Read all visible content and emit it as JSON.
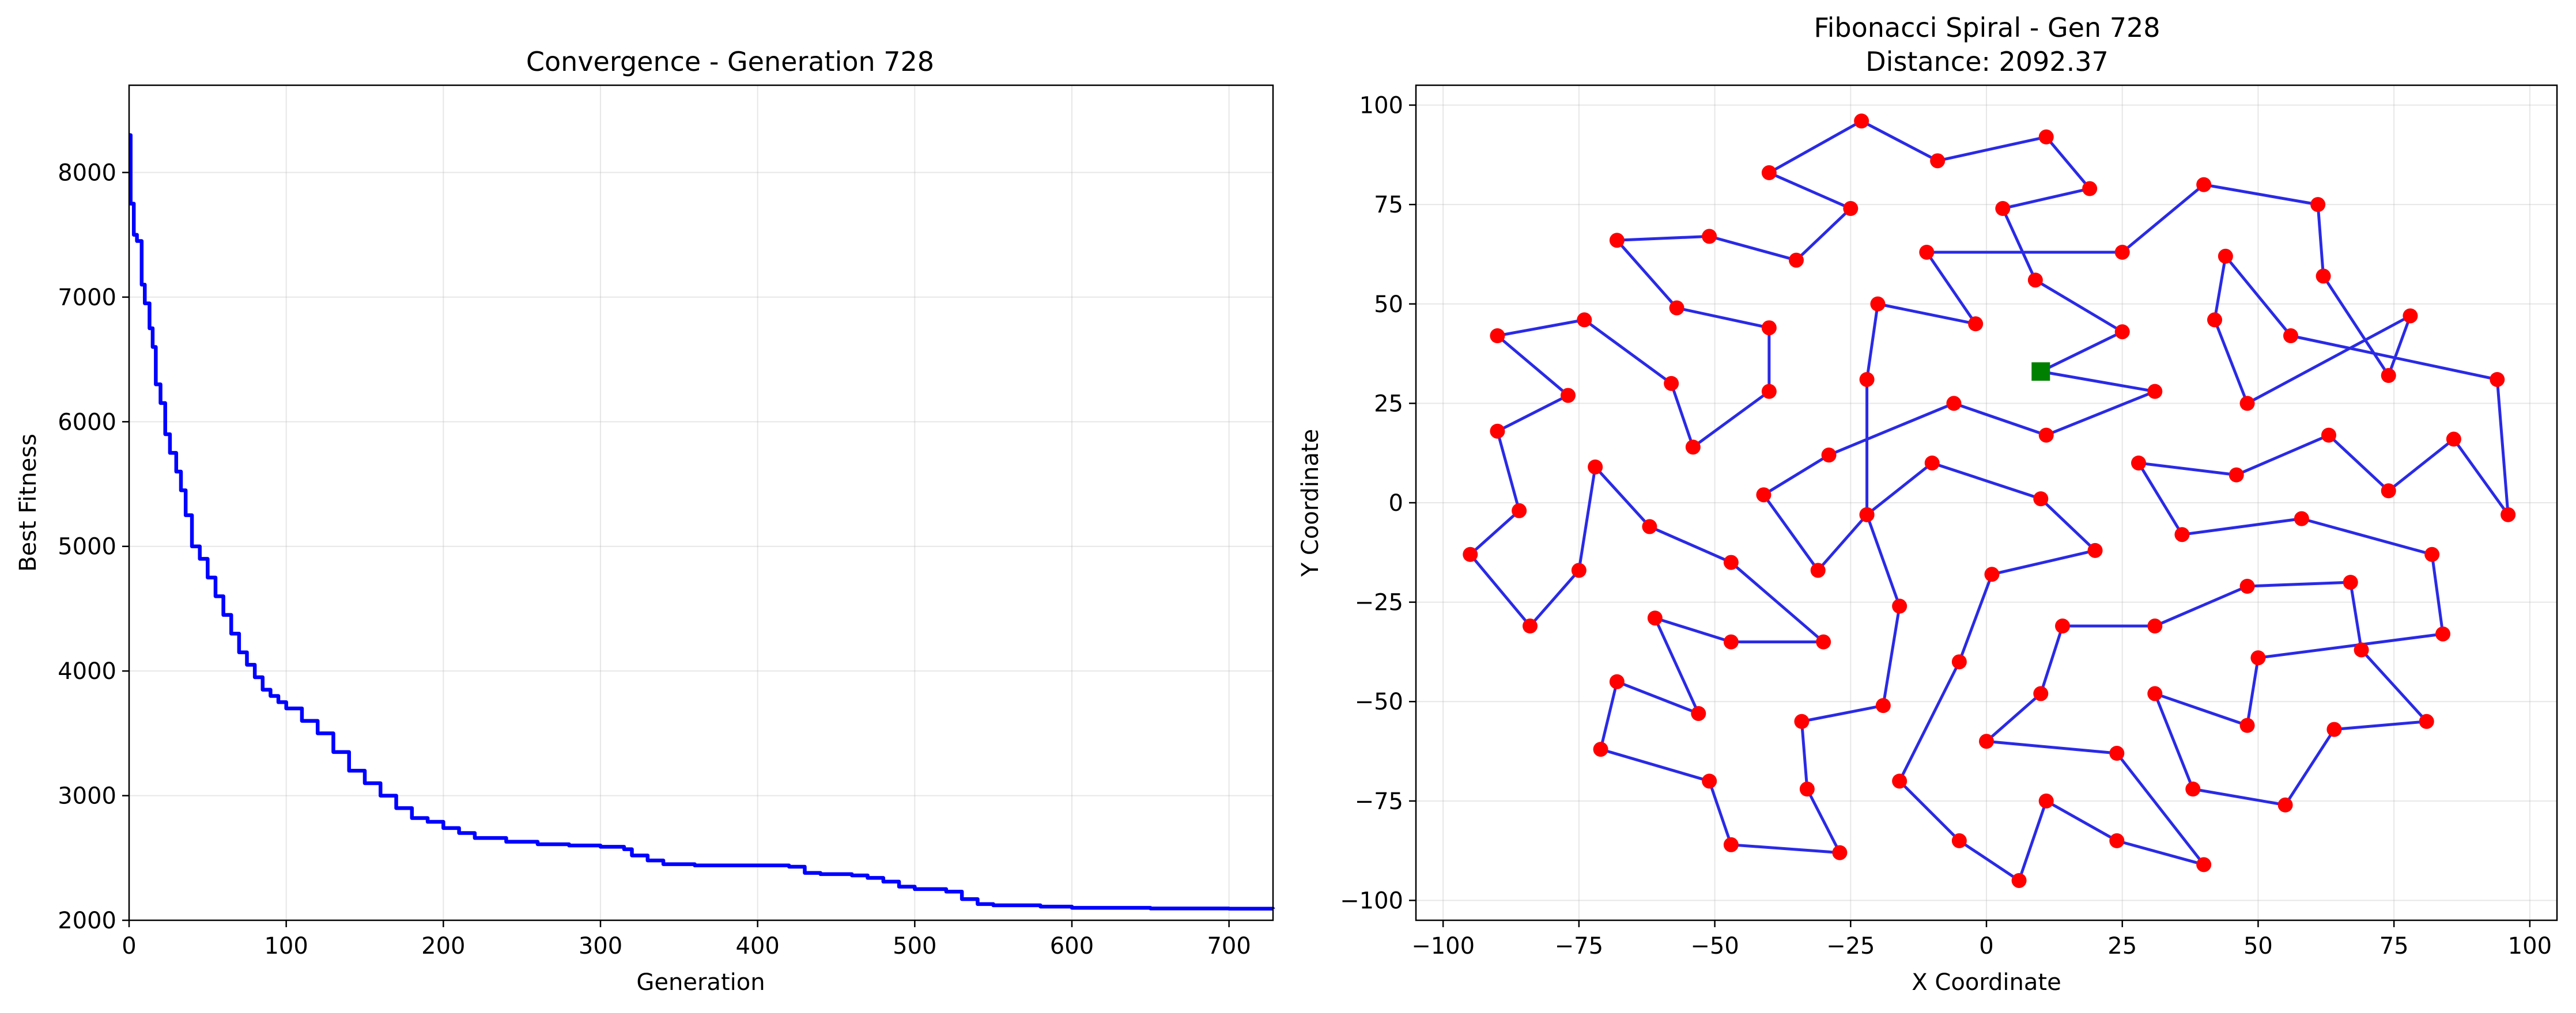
{
  "chart_data": [
    {
      "type": "line",
      "title": "Convergence - Generation 728",
      "xlabel": "Generation",
      "ylabel": "Best Fitness",
      "xlim": [
        0,
        728
      ],
      "ylim": [
        2000,
        8700
      ],
      "xticks": [
        0,
        100,
        200,
        300,
        400,
        500,
        600,
        700
      ],
      "yticks": [
        2000,
        3000,
        4000,
        5000,
        6000,
        7000,
        8000
      ],
      "grid": true,
      "line_color": "#0000ff",
      "series": [
        {
          "x": [
            0,
            1,
            3,
            5,
            8,
            10,
            13,
            15,
            17,
            20,
            23,
            26,
            30,
            33,
            36,
            40,
            45,
            50,
            55,
            60,
            65,
            70,
            75,
            80,
            85,
            90,
            95,
            100,
            110,
            120,
            130,
            140,
            150,
            160,
            170,
            180,
            190,
            200,
            210,
            220,
            240,
            260,
            280,
            300,
            315,
            320,
            330,
            340,
            360,
            380,
            400,
            420,
            430,
            440,
            460,
            470,
            480,
            490,
            500,
            520,
            530,
            540,
            550,
            580,
            600,
            630,
            650,
            700,
            728
          ],
          "y": [
            8300,
            7750,
            7500,
            7450,
            7100,
            6950,
            6750,
            6600,
            6300,
            6150,
            5900,
            5750,
            5600,
            5450,
            5250,
            5000,
            4900,
            4750,
            4600,
            4450,
            4300,
            4150,
            4050,
            3950,
            3850,
            3800,
            3750,
            3700,
            3600,
            3500,
            3350,
            3200,
            3100,
            3000,
            2900,
            2820,
            2790,
            2740,
            2700,
            2660,
            2630,
            2610,
            2600,
            2590,
            2570,
            2520,
            2480,
            2450,
            2440,
            2440,
            2440,
            2430,
            2380,
            2370,
            2360,
            2340,
            2310,
            2270,
            2250,
            2230,
            2170,
            2130,
            2120,
            2110,
            2100,
            2100,
            2095,
            2093,
            2092
          ]
        }
      ]
    },
    {
      "type": "scatter",
      "title": "Fibonacci Spiral - Gen 728",
      "subtitle": "Distance: 2092.37",
      "xlabel": "X Coordinate",
      "ylabel": "Y Coordinate",
      "xlim": [
        -105,
        105
      ],
      "ylim": [
        -105,
        105
      ],
      "xticks": [
        -100,
        -75,
        -50,
        -25,
        0,
        25,
        50,
        75,
        100
      ],
      "yticks": [
        -100,
        -75,
        -50,
        -25,
        0,
        25,
        50,
        75,
        100
      ],
      "grid": true,
      "route_color": "#2a2ae6",
      "city_color": "#ff0000",
      "start_color": "#008000",
      "start": [
        10,
        33
      ],
      "route": [
        [
          10,
          33
        ],
        [
          31,
          28
        ],
        [
          11,
          17
        ],
        [
          -6,
          25
        ],
        [
          -29,
          12
        ],
        [
          -41,
          2
        ],
        [
          -31,
          -17
        ],
        [
          -22,
          -3
        ],
        [
          -10,
          10
        ],
        [
          10,
          1
        ],
        [
          20,
          -12
        ],
        [
          1,
          -18
        ],
        [
          -5,
          -40
        ],
        [
          -16,
          -70
        ],
        [
          -5,
          -85
        ],
        [
          6,
          -95
        ],
        [
          11,
          -75
        ],
        [
          24,
          -85
        ],
        [
          40,
          -91
        ],
        [
          24,
          -63
        ],
        [
          0,
          -60
        ],
        [
          10,
          -48
        ],
        [
          14,
          -31
        ],
        [
          31,
          -31
        ],
        [
          48,
          -21
        ],
        [
          67,
          -20
        ],
        [
          69,
          -37
        ],
        [
          81,
          -55
        ],
        [
          64,
          -57
        ],
        [
          55,
          -76
        ],
        [
          38,
          -72
        ],
        [
          31,
          -48
        ],
        [
          48,
          -56
        ],
        [
          50,
          -39
        ],
        [
          84,
          -33
        ],
        [
          82,
          -13
        ],
        [
          58,
          -4
        ],
        [
          36,
          -8
        ],
        [
          28,
          10
        ],
        [
          46,
          7
        ],
        [
          63,
          17
        ],
        [
          74,
          3
        ],
        [
          86,
          16
        ],
        [
          96,
          -3
        ],
        [
          94,
          31
        ],
        [
          56,
          42
        ],
        [
          44,
          62
        ],
        [
          42,
          46
        ],
        [
          48,
          25
        ],
        [
          78,
          47
        ],
        [
          74,
          32
        ],
        [
          62,
          57
        ],
        [
          61,
          75
        ],
        [
          40,
          80
        ],
        [
          25,
          63
        ],
        [
          -11,
          63
        ],
        [
          -2,
          45
        ],
        [
          -20,
          50
        ],
        [
          -22,
          31
        ],
        [
          -22,
          -3
        ],
        [
          -16,
          -26
        ],
        [
          -19,
          -51
        ],
        [
          -34,
          -55
        ],
        [
          -33,
          -72
        ],
        [
          -27,
          -88
        ],
        [
          -47,
          -86
        ],
        [
          -51,
          -70
        ],
        [
          -71,
          -62
        ],
        [
          -68,
          -45
        ],
        [
          -53,
          -53
        ],
        [
          -61,
          -29
        ],
        [
          -47,
          -35
        ],
        [
          -30,
          -35
        ],
        [
          -47,
          -15
        ],
        [
          -62,
          -6
        ],
        [
          -72,
          9
        ],
        [
          -75,
          -17
        ],
        [
          -84,
          -31
        ],
        [
          -95,
          -13
        ],
        [
          -86,
          -2
        ],
        [
          -90,
          18
        ],
        [
          -77,
          27
        ],
        [
          -90,
          42
        ],
        [
          -74,
          46
        ],
        [
          -58,
          30
        ],
        [
          -54,
          14
        ],
        [
          -40,
          28
        ],
        [
          -40,
          44
        ],
        [
          -57,
          49
        ],
        [
          -68,
          66
        ],
        [
          -51,
          67
        ],
        [
          -35,
          61
        ],
        [
          -25,
          74
        ],
        [
          -40,
          83
        ],
        [
          -23,
          96
        ],
        [
          -9,
          86
        ],
        [
          11,
          92
        ],
        [
          19,
          79
        ],
        [
          3,
          74
        ],
        [
          9,
          56
        ],
        [
          25,
          43
        ],
        [
          10,
          33
        ]
      ]
    }
  ]
}
